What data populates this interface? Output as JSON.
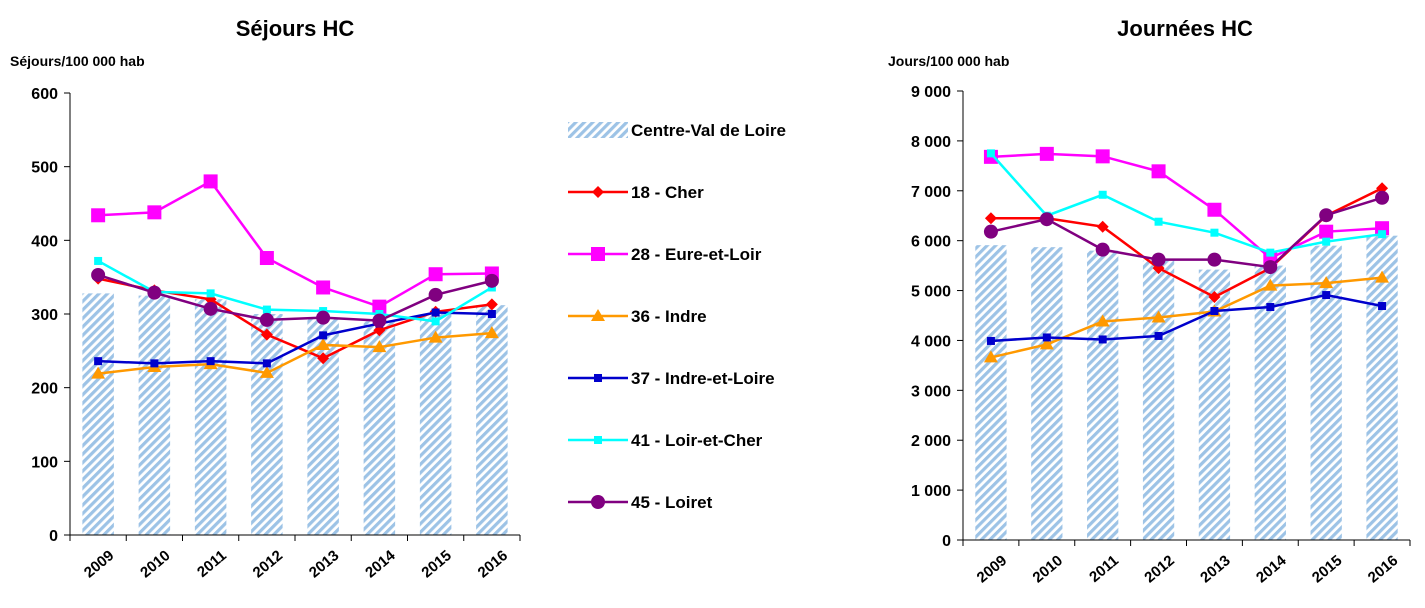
{
  "chart_data": [
    {
      "type": "line",
      "title": "Séjours HC",
      "y_label": "Séjours/100 000 hab",
      "categories": [
        "2009",
        "2010",
        "2011",
        "2012",
        "2013",
        "2014",
        "2015",
        "2016"
      ],
      "ylim": [
        0,
        600
      ],
      "yticks": [
        0,
        100,
        200,
        300,
        400,
        500,
        600
      ],
      "series": [
        {
          "name": "Centre-Val de Loire",
          "kind": "bar",
          "color": "#9dc3e6",
          "values": [
            328,
            325,
            320,
            300,
            295,
            290,
            300,
            312
          ]
        },
        {
          "name": "18 - Cher",
          "kind": "line",
          "marker": "diamond",
          "color": "#ff0000",
          "values": [
            348,
            332,
            320,
            272,
            240,
            278,
            303,
            313
          ]
        },
        {
          "name": "28 - Eure-et-Loir",
          "kind": "line",
          "marker": "square",
          "color": "#ff00ff",
          "values": [
            434,
            438,
            480,
            376,
            336,
            310,
            354,
            355
          ]
        },
        {
          "name": "36 - Indre",
          "kind": "line",
          "marker": "triangle",
          "color": "#ff9900",
          "values": [
            219,
            228,
            232,
            220,
            258,
            255,
            268,
            274
          ]
        },
        {
          "name": "37 - Indre-et-Loire",
          "kind": "line",
          "marker": "small-square",
          "color": "#0000cc",
          "values": [
            236,
            233,
            236,
            233,
            271,
            287,
            302,
            300
          ]
        },
        {
          "name": "41 - Loir-et-Cher",
          "kind": "line",
          "marker": "small-square",
          "color": "#00ffff",
          "values": [
            372,
            330,
            328,
            306,
            304,
            300,
            290,
            336
          ]
        },
        {
          "name": "45 - Loiret",
          "kind": "line",
          "marker": "circle",
          "color": "#800080",
          "values": [
            353,
            329,
            307,
            292,
            295,
            291,
            326,
            345
          ]
        }
      ]
    },
    {
      "type": "line",
      "title": "Journées HC",
      "y_label": "Jours/100 000 hab",
      "categories": [
        "2009",
        "2010",
        "2011",
        "2012",
        "2013",
        "2014",
        "2015",
        "2016"
      ],
      "ylim": [
        0,
        9000
      ],
      "yticks": [
        0,
        {
          "value": 1000,
          "label": "1 000"
        },
        {
          "value": 2000,
          "label": "2 000"
        },
        {
          "value": 3000,
          "label": "3 000"
        },
        {
          "value": 4000,
          "label": "4 000"
        },
        {
          "value": 5000,
          "label": "5 000"
        },
        {
          "value": 6000,
          "label": "6 000"
        },
        {
          "value": 7000,
          "label": "7 000"
        },
        {
          "value": 8000,
          "label": "8 000"
        },
        {
          "value": 9000,
          "label": "9 000"
        }
      ],
      "series": [
        {
          "kind": "bar",
          "color": "#9dc3e6",
          "values": [
            5910,
            5870,
            5800,
            5600,
            5420,
            5500,
            5900,
            6100
          ]
        },
        {
          "kind": "line",
          "marker": "diamond",
          "color": "#ff0000",
          "values": [
            6450,
            6450,
            6280,
            5450,
            4870,
            5450,
            6500,
            7050
          ]
        },
        {
          "kind": "line",
          "marker": "square",
          "color": "#ff00ff",
          "values": [
            7680,
            7740,
            7690,
            7390,
            6620,
            5650,
            6180,
            6250
          ]
        },
        {
          "kind": "line",
          "marker": "triangle",
          "color": "#ff9900",
          "values": [
            3660,
            3920,
            4380,
            4460,
            4580,
            5100,
            5150,
            5260
          ]
        },
        {
          "kind": "line",
          "marker": "small-square",
          "color": "#0000cc",
          "values": [
            3990,
            4060,
            4020,
            4090,
            4590,
            4670,
            4910,
            4690
          ]
        },
        {
          "kind": "line",
          "marker": "small-square",
          "color": "#00ffff",
          "values": [
            7750,
            6500,
            6920,
            6380,
            6160,
            5760,
            5980,
            6130
          ]
        },
        {
          "kind": "line",
          "marker": "circle",
          "color": "#800080",
          "values": [
            6180,
            6430,
            5820,
            5620,
            5620,
            5470,
            6510,
            6860
          ]
        }
      ]
    }
  ]
}
